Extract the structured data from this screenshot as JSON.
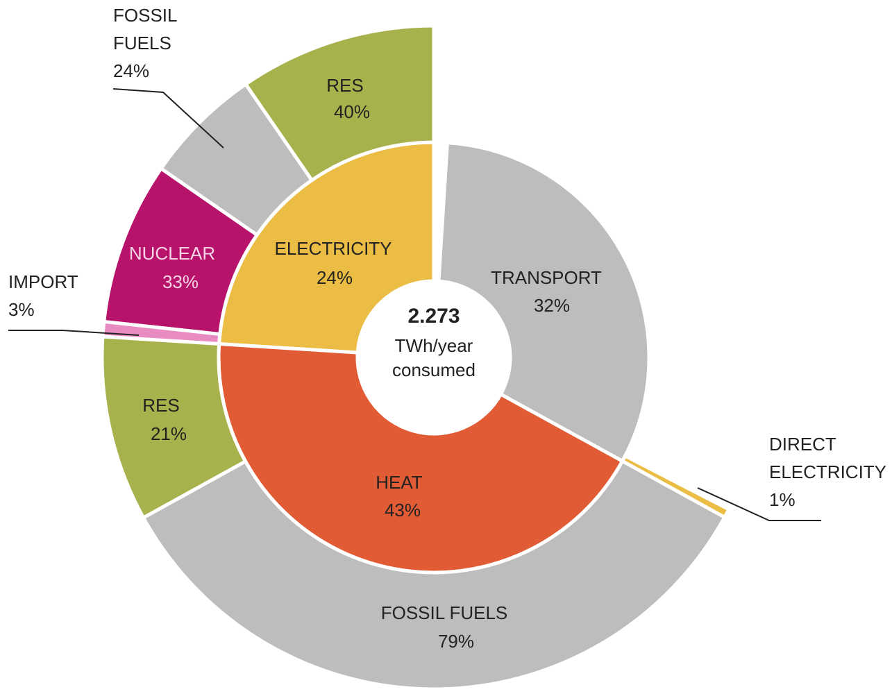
{
  "chart_data": {
    "type": "sunburst",
    "center_text": [
      "2.273",
      "TWh/year",
      "consumed"
    ],
    "categories": [
      "ELECTRICITY",
      "HEAT",
      "TRANSPORT"
    ],
    "values": [
      24,
      43,
      32
    ],
    "value_labels": [
      "24%",
      "43%",
      "32%"
    ],
    "colors": [
      "#ebbd45",
      "#e15b35",
      "#bdbdbd"
    ],
    "children": [
      {
        "categories": [
          "RES",
          "FOSSIL FUELS",
          "NUCLEAR",
          "IMPORT"
        ],
        "values": [
          40,
          24,
          33,
          3
        ],
        "value_labels": [
          "40%",
          "24%",
          "33%",
          "3%"
        ],
        "colors": [
          "#a7b24c",
          "#bdbdbd",
          "#b8136b",
          "#e88bc0"
        ]
      },
      {
        "categories": [
          "RES",
          "FOSSIL FUELS",
          "DIRECT ELECTRICITY"
        ],
        "values": [
          21,
          79,
          1
        ],
        "value_labels": [
          "21%",
          "79%",
          "1%"
        ],
        "colors": [
          "#a7b24c",
          "#bdbdbd",
          "#ebbd45"
        ]
      }
    ]
  }
}
